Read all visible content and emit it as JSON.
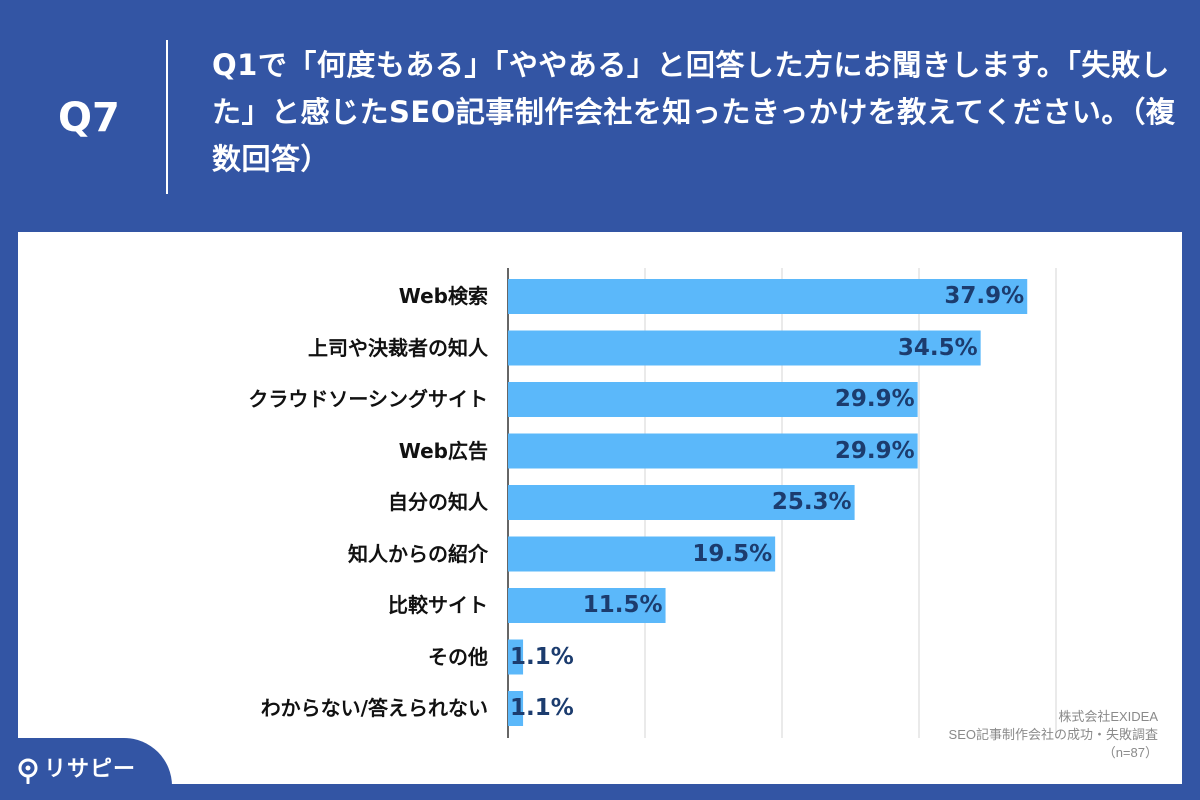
{
  "header": {
    "question_number": "Q7",
    "question_text": "Q1で「何度もある」「ややある」と回答した方にお聞きします。「失敗した」と感じたSEO記事制作会社を知ったきっかけを教えてください。（複数回答）"
  },
  "source": {
    "company": "株式会社EXIDEA",
    "survey": "SEO記事制作会社の成功・失敗調査",
    "sample": "（n=87）"
  },
  "brand": {
    "name": "リサピー"
  },
  "colors": {
    "background": "#3355a4",
    "bar": "#5bb8fa",
    "value_text": "#1c3c6e"
  },
  "chart_data": {
    "type": "bar",
    "orientation": "horizontal",
    "categories": [
      "Web検索",
      "上司や決裁者の知人",
      "クラウドソーシングサイト",
      "Web広告",
      "自分の知人",
      "知人からの紹介",
      "比較サイト",
      "その他",
      "わからない/答えられない"
    ],
    "values": [
      37.9,
      34.5,
      29.9,
      29.9,
      25.3,
      19.5,
      11.5,
      1.1,
      1.1
    ],
    "value_labels": [
      "37.9%",
      "34.5%",
      "29.9%",
      "29.9%",
      "25.3%",
      "19.5%",
      "11.5%",
      "1.1%",
      "1.1%"
    ],
    "xlim": [
      0,
      40
    ],
    "grid": true
  }
}
